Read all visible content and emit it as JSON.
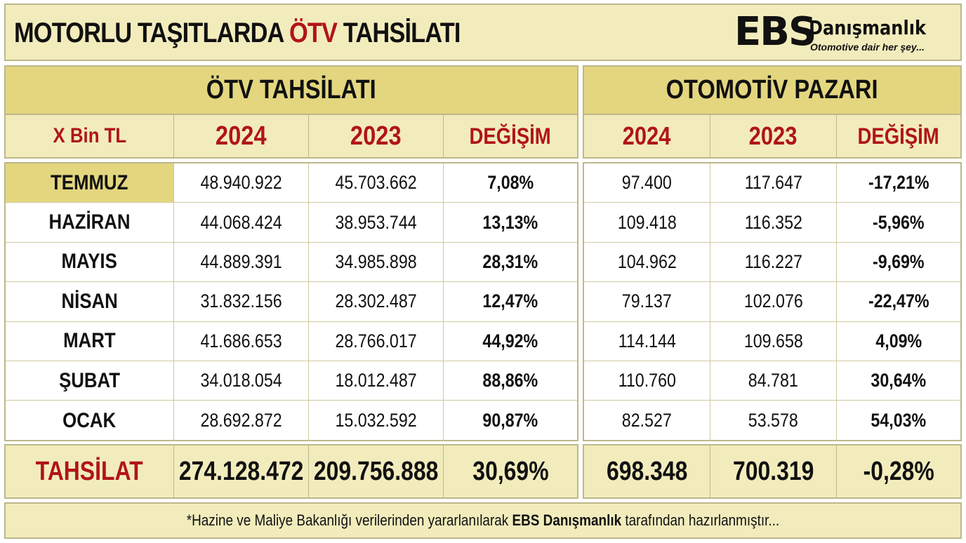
{
  "banner": {
    "title_pre": "MOTORLU TAŞITLARDA ",
    "title_highlight": "ÖTV",
    "title_post": " TAHSİLATI",
    "logo_mark": "EBS",
    "logo_name": "Danışmanlık",
    "logo_slogan": "Otomotive dair her şey..."
  },
  "otv": {
    "heading": "ÖTV TAHSİLATI",
    "columns": [
      "X Bin TL",
      "2024",
      "2023",
      "DEĞİŞİM"
    ]
  },
  "market": {
    "heading": "OTOMOTİV PAZARI",
    "columns": [
      "2024",
      "2023",
      "DEĞİŞİM"
    ]
  },
  "rows": [
    {
      "month": "TEMMUZ",
      "otv_2024": "48.940.922",
      "otv_2023": "45.703.662",
      "otv_change": "7,08%",
      "market_2024": "97.400",
      "market_2023": "117.647",
      "market_change": "-17,21%"
    },
    {
      "month": "HAZİRAN",
      "otv_2024": "44.068.424",
      "otv_2023": "38.953.744",
      "otv_change": "13,13%",
      "market_2024": "109.418",
      "market_2023": "116.352",
      "market_change": "-5,96%"
    },
    {
      "month": "MAYIS",
      "otv_2024": "44.889.391",
      "otv_2023": "34.985.898",
      "otv_change": "28,31%",
      "market_2024": "104.962",
      "market_2023": "116.227",
      "market_change": "-9,69%"
    },
    {
      "month": "NİSAN",
      "otv_2024": "31.832.156",
      "otv_2023": "28.302.487",
      "otv_change": "12,47%",
      "market_2024": "79.137",
      "market_2023": "102.076",
      "market_change": "-22,47%"
    },
    {
      "month": "MART",
      "otv_2024": "41.686.653",
      "otv_2023": "28.766.017",
      "otv_change": "44,92%",
      "market_2024": "114.144",
      "market_2023": "109.658",
      "market_change": "4,09%"
    },
    {
      "month": "ŞUBAT",
      "otv_2024": "34.018.054",
      "otv_2023": "18.012.487",
      "otv_change": "88,86%",
      "market_2024": "110.760",
      "market_2023": "84.781",
      "market_change": "30,64%"
    },
    {
      "month": "OCAK",
      "otv_2024": "28.692.872",
      "otv_2023": "15.032.592",
      "otv_change": "90,87%",
      "market_2024": "82.527",
      "market_2023": "53.578",
      "market_change": "54,03%"
    }
  ],
  "totals": {
    "label": "TAHSİLAT",
    "otv_2024": "274.128.472",
    "otv_2023": "209.756.888",
    "otv_change": "30,69%",
    "market_2024": "698.348",
    "market_2023": "700.319",
    "market_change": "-0,28%"
  },
  "footer": {
    "pre": "*Hazine ve Maliye Bakanlığı verilerinden yararlanılarak ",
    "bold": "EBS Danışmanlık",
    "post": " tarafından hazırlanmıştır..."
  },
  "colors": {
    "accent_red": "#b0141b",
    "header_gold": "#e3d67f",
    "light_cream": "#f2ecbd",
    "border": "#bdb78a"
  }
}
